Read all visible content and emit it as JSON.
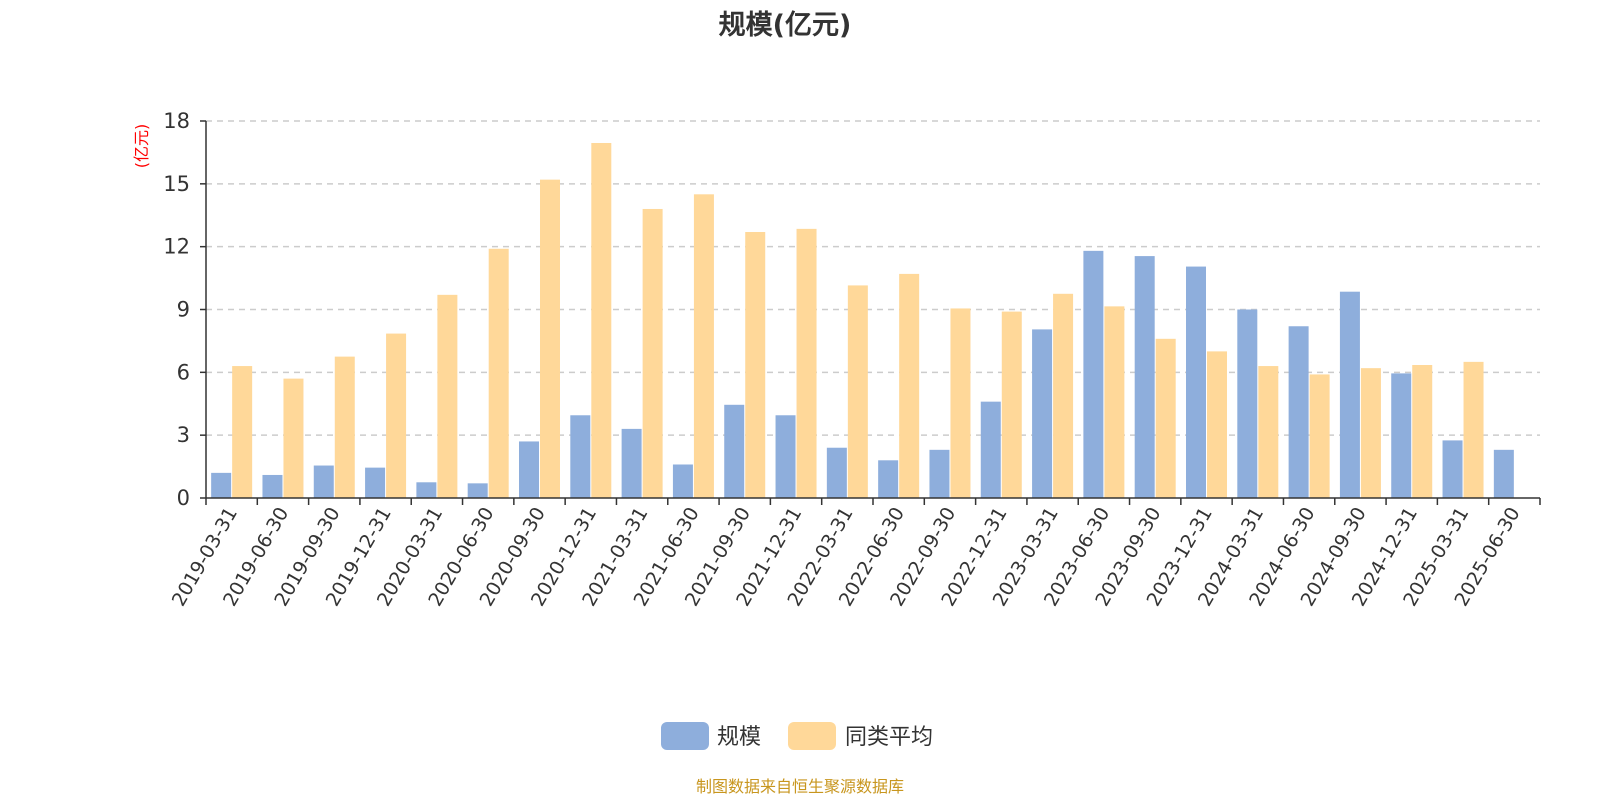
{
  "chart_data": {
    "type": "bar",
    "title": "规模(亿元)",
    "ylabel": "(亿元)",
    "xlabel": "",
    "ylim": [
      0,
      18
    ],
    "yticks": [
      0,
      3,
      6,
      9,
      12,
      15,
      18
    ],
    "grid": true,
    "legend_position": "bottom",
    "categories": [
      "2019-03-31",
      "2019-06-30",
      "2019-09-30",
      "2019-12-31",
      "2020-03-31",
      "2020-06-30",
      "2020-09-30",
      "2020-12-31",
      "2021-03-31",
      "2021-06-30",
      "2021-09-30",
      "2021-12-31",
      "2022-03-31",
      "2022-06-30",
      "2022-09-30",
      "2022-12-31",
      "2023-03-31",
      "2023-06-30",
      "2023-09-30",
      "2023-12-31",
      "2024-03-31",
      "2024-06-30",
      "2024-09-30",
      "2024-12-31",
      "2025-03-31",
      "2025-06-30"
    ],
    "series": [
      {
        "name": "规模",
        "color": "#8eaedc",
        "values": [
          1.2,
          1.1,
          1.55,
          1.45,
          0.75,
          0.7,
          2.7,
          3.95,
          3.3,
          1.6,
          4.45,
          3.95,
          2.4,
          1.8,
          2.3,
          4.6,
          8.05,
          11.8,
          11.55,
          11.05,
          9.0,
          8.2,
          9.85,
          5.95,
          2.75,
          2.3
        ]
      },
      {
        "name": "同类平均",
        "color": "#ffd899",
        "values": [
          6.3,
          5.7,
          6.75,
          7.85,
          9.7,
          11.9,
          15.2,
          16.95,
          13.8,
          14.5,
          12.7,
          12.85,
          10.15,
          10.7,
          9.05,
          8.9,
          9.75,
          9.15,
          7.6,
          7.0,
          6.3,
          5.9,
          6.2,
          6.35,
          6.5,
          null
        ]
      }
    ]
  },
  "source_text": "制图数据来自恒生聚源数据库",
  "colors": {
    "axis": "#333333",
    "grid": "#cccccc",
    "ylabel": "#ff0000",
    "source": "#c8961e"
  }
}
